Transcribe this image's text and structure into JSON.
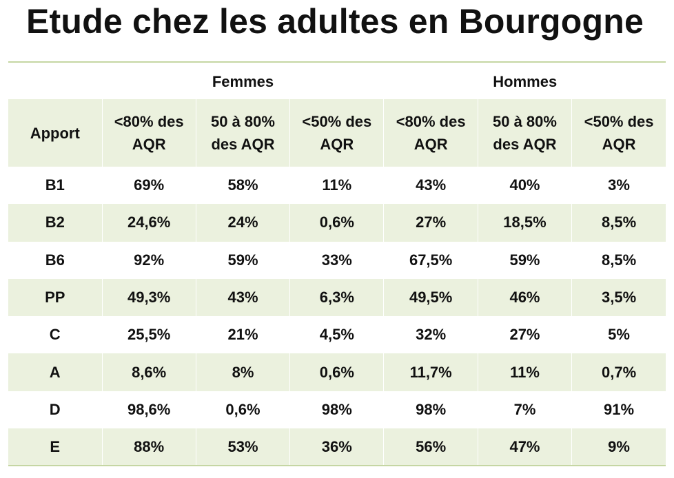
{
  "title": "Etude chez les adultes en Bourgogne",
  "group_headers": [
    "Femmes",
    "Hommes"
  ],
  "column_headers": [
    "Apport",
    "<80% des AQR",
    "50 à 80% des AQR",
    "<50% des AQR",
    "<80% des AQR",
    "50 à 80% des AQR",
    "<50% des AQR"
  ],
  "rows": [
    [
      "B1",
      "69%",
      "58%",
      "11%",
      "43%",
      "40%",
      "3%"
    ],
    [
      "B2",
      "24,6%",
      "24%",
      "0,6%",
      "27%",
      "18,5%",
      "8,5%"
    ],
    [
      "B6",
      "92%",
      "59%",
      "33%",
      "67,5%",
      "59%",
      "8,5%"
    ],
    [
      "PP",
      "49,3%",
      "43%",
      "6,3%",
      "49,5%",
      "46%",
      "3,5%"
    ],
    [
      "C",
      "25,5%",
      "21%",
      "4,5%",
      "32%",
      "27%",
      "5%"
    ],
    [
      "A",
      "8,6%",
      "8%",
      "0,6%",
      "11,7%",
      "11%",
      "0,7%"
    ],
    [
      "D",
      "98,6%",
      "0,6%",
      "98%",
      "98%",
      "7%",
      "91%"
    ],
    [
      "E",
      "88%",
      "53%",
      "36%",
      "56%",
      "47%",
      "9%"
    ]
  ],
  "colors": {
    "row_band": "#ebf1de",
    "rule": "#c5d6a3",
    "text": "#111111"
  }
}
